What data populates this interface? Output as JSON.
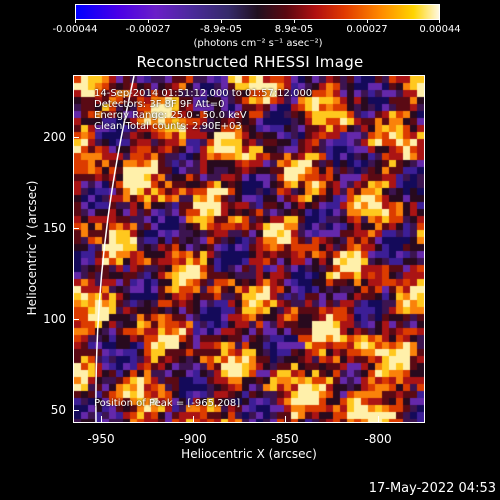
{
  "colorbar": {
    "ticks": [
      "-0.00044",
      "-0.00027",
      "-8.9e-05",
      "8.9e-05",
      "0.00027",
      "0.00044"
    ],
    "units_label": "(photons cm⁻² s⁻¹ asec⁻²)"
  },
  "plot": {
    "title": "Reconstructed RHESSI Image",
    "info_lines": [
      "14-Sep-2014 01:51:12.000 to 01:57:12.000",
      "Detectors: 3F 8F 9F Att=0",
      "Energy Range: 25.0 - 50.0 keV",
      "Clean   Total counts: 2.90E+03"
    ],
    "peak_label": "Position of Peak = [-965,208]",
    "xlabel": "Heliocentric X (arcsec)",
    "ylabel": "Heliocentric Y (arcsec)",
    "xticks": [
      "-950",
      "-900",
      "-850",
      "-800"
    ],
    "yticks": [
      "200",
      "150",
      "100",
      "50"
    ],
    "xlim": [
      -965,
      -775
    ],
    "ylim": [
      42,
      232
    ]
  },
  "footer": {
    "timestamp": "17-May-2022 04:53"
  }
}
